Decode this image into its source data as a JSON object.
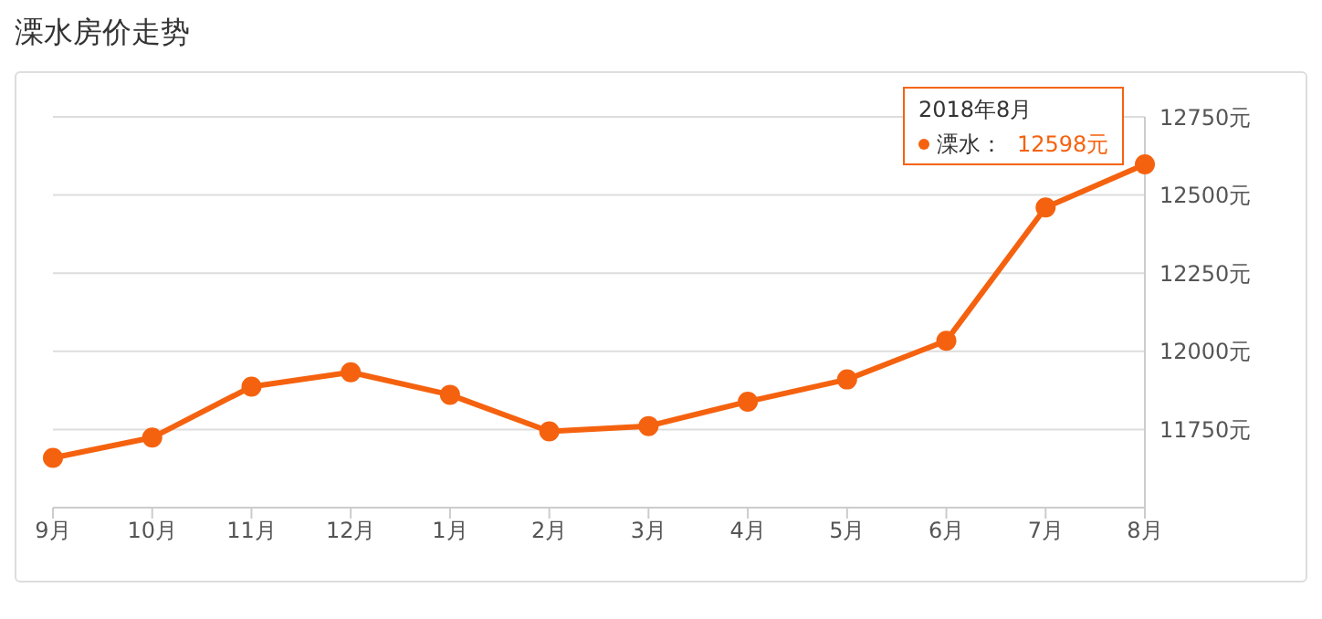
{
  "chart_data": {
    "type": "line",
    "title": "溧水房价走势",
    "categories": [
      "9月",
      "10月",
      "11月",
      "12月",
      "1月",
      "2月",
      "3月",
      "4月",
      "5月",
      "6月",
      "7月",
      "8月"
    ],
    "series": [
      {
        "name": "溧水：",
        "color": "#f5620f",
        "values": [
          11659,
          11724,
          11887,
          11933,
          11861,
          11744,
          11761,
          11839,
          11910,
          12034,
          12460,
          12598
        ],
        "value_labels": [
          null,
          null,
          null,
          null,
          null,
          null,
          null,
          null,
          null,
          null,
          null,
          "12598元"
        ]
      }
    ],
    "annotations": [
      "2018年8月"
    ],
    "ylim": [
      11500,
      12750
    ],
    "yticks": [
      {
        "value": 11750,
        "label": "11750元"
      },
      {
        "value": 12000,
        "label": "12000元"
      },
      {
        "value": 12250,
        "label": "12250元"
      },
      {
        "value": 12500,
        "label": "12500元"
      },
      {
        "value": 12750,
        "label": "12750元"
      }
    ],
    "grid": "y",
    "marker": "circle",
    "line_style": "solid"
  }
}
